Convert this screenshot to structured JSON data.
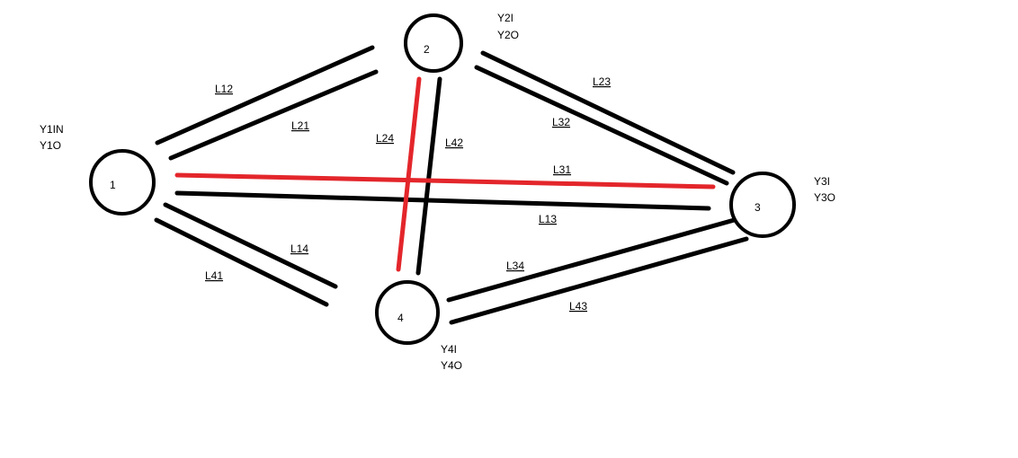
{
  "colors": {
    "background": "#ffffff",
    "default_link": "#000000",
    "highlight_link": "#e3262b"
  },
  "nodes": [
    {
      "id": "node-1",
      "label": "1",
      "annotations": [
        "Y1IN",
        "Y1O"
      ]
    },
    {
      "id": "node-2",
      "label": "2",
      "annotations": [
        "Y2I",
        "Y2O"
      ]
    },
    {
      "id": "node-3",
      "label": "3",
      "annotations": [
        "Y3I",
        "Y3O"
      ]
    },
    {
      "id": "node-4",
      "label": "4",
      "annotations": [
        "Y4I",
        "Y4O"
      ]
    }
  ],
  "links": [
    {
      "id": "link-12",
      "label": "L12",
      "from": "1",
      "to": "2",
      "highlighted": false
    },
    {
      "id": "link-21",
      "label": "L21",
      "from": "2",
      "to": "1",
      "highlighted": false
    },
    {
      "id": "link-23",
      "label": "L23",
      "from": "2",
      "to": "3",
      "highlighted": false
    },
    {
      "id": "link-32",
      "label": "L32",
      "from": "3",
      "to": "2",
      "highlighted": false
    },
    {
      "id": "link-24",
      "label": "L24",
      "from": "2",
      "to": "4",
      "highlighted": true
    },
    {
      "id": "link-42",
      "label": "L42",
      "from": "4",
      "to": "2",
      "highlighted": false
    },
    {
      "id": "link-31",
      "label": "L31",
      "from": "3",
      "to": "1",
      "highlighted": true
    },
    {
      "id": "link-13",
      "label": "L13",
      "from": "1",
      "to": "3",
      "highlighted": false
    },
    {
      "id": "link-14",
      "label": "L14",
      "from": "1",
      "to": "4",
      "highlighted": false
    },
    {
      "id": "link-41",
      "label": "L41",
      "from": "4",
      "to": "1",
      "highlighted": false
    },
    {
      "id": "link-34",
      "label": "L34",
      "from": "3",
      "to": "4",
      "highlighted": false
    },
    {
      "id": "link-43",
      "label": "L43",
      "from": "4",
      "to": "3",
      "highlighted": false
    }
  ]
}
